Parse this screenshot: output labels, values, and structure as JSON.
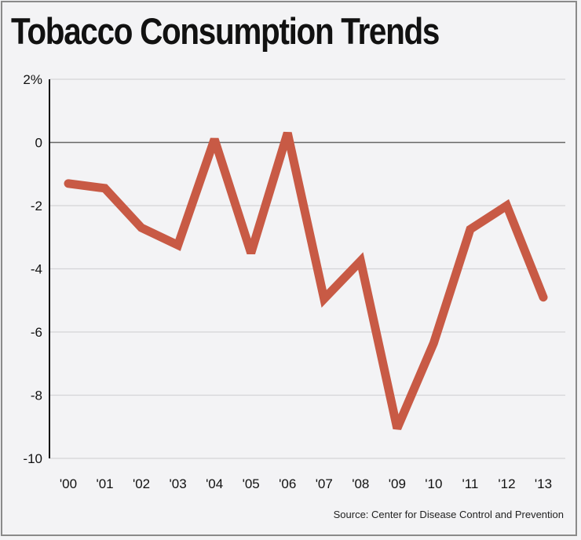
{
  "chart_data": {
    "type": "line",
    "title": "Tobacco Consumption Trends",
    "source": "Source: Center for Disease Control and Prevention",
    "categories": [
      "'00",
      "'01",
      "'02",
      "'03",
      "'04",
      "'05",
      "'06",
      "'07",
      "'08",
      "'09",
      "'10",
      "'11",
      "'12",
      "'13"
    ],
    "values": [
      -1.3,
      -1.45,
      -2.7,
      -3.25,
      0.1,
      -3.5,
      0.3,
      -4.95,
      -3.75,
      -9.05,
      -6.35,
      -2.75,
      -2.0,
      -4.9
    ],
    "ylim": [
      -10,
      2
    ],
    "yticks": [
      2,
      0,
      -2,
      -4,
      -6,
      -8,
      -10
    ],
    "ytick_labels": [
      "2%",
      "0",
      "-2",
      "-4",
      "-6",
      "-8",
      "-10"
    ],
    "grid": true,
    "line_color": "#c85a45",
    "background_color": "#f3f3f5"
  }
}
